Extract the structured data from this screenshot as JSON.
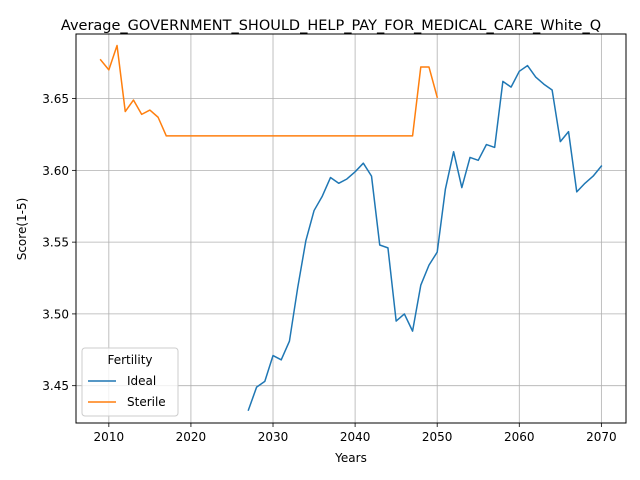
{
  "chart_data": {
    "type": "line",
    "title": "Average_GOVERNMENT_SHOULD_HELP_PAY_FOR_MEDICAL_CARE_White_Q",
    "xlabel": "Years",
    "ylabel": "Score(1-5)",
    "xlim": [
      2006,
      2073
    ],
    "ylim": [
      3.424,
      3.695
    ],
    "xticks": [
      2010,
      2020,
      2030,
      2040,
      2050,
      2060,
      2070
    ],
    "yticks": [
      3.45,
      3.5,
      3.55,
      3.6,
      3.65
    ],
    "ytick_labels": [
      "3.45",
      "3.50",
      "3.55",
      "3.60",
      "3.65"
    ],
    "grid": true,
    "legend": {
      "title": "Fertility",
      "position": "lower-left"
    },
    "series": [
      {
        "name": "Ideal",
        "color": "#1f77b4",
        "points": [
          [
            2027,
            3.433
          ],
          [
            2028,
            3.449
          ],
          [
            2029,
            3.453
          ],
          [
            2030,
            3.471
          ],
          [
            2031,
            3.468
          ],
          [
            2032,
            3.481
          ],
          [
            2033,
            3.518
          ],
          [
            2034,
            3.551
          ],
          [
            2035,
            3.572
          ],
          [
            2036,
            3.582
          ],
          [
            2037,
            3.595
          ],
          [
            2038,
            3.591
          ],
          [
            2039,
            3.594
          ],
          [
            2040,
            3.599
          ],
          [
            2041,
            3.605
          ],
          [
            2042,
            3.596
          ],
          [
            2043,
            3.548
          ],
          [
            2044,
            3.546
          ],
          [
            2045,
            3.495
          ],
          [
            2046,
            3.5
          ],
          [
            2047,
            3.488
          ],
          [
            2048,
            3.52
          ],
          [
            2049,
            3.534
          ],
          [
            2050,
            3.543
          ],
          [
            2051,
            3.587
          ],
          [
            2052,
            3.613
          ],
          [
            2053,
            3.588
          ],
          [
            2054,
            3.609
          ],
          [
            2055,
            3.607
          ],
          [
            2056,
            3.618
          ],
          [
            2057,
            3.616
          ],
          [
            2058,
            3.662
          ],
          [
            2059,
            3.658
          ],
          [
            2060,
            3.669
          ],
          [
            2061,
            3.673
          ],
          [
            2062,
            3.665
          ],
          [
            2063,
            3.66
          ],
          [
            2064,
            3.656
          ],
          [
            2065,
            3.62
          ],
          [
            2066,
            3.627
          ],
          [
            2067,
            3.585
          ],
          [
            2068,
            3.591
          ],
          [
            2069,
            3.596
          ],
          [
            2070,
            3.603
          ]
        ]
      },
      {
        "name": "Sterile",
        "color": "#ff7f0e",
        "points": [
          [
            2009,
            3.677
          ],
          [
            2010,
            3.67
          ],
          [
            2011,
            3.687
          ],
          [
            2012,
            3.641
          ],
          [
            2013,
            3.649
          ],
          [
            2014,
            3.639
          ],
          [
            2015,
            3.642
          ],
          [
            2016,
            3.637
          ],
          [
            2017,
            3.624
          ],
          [
            2018,
            3.624
          ],
          [
            2020,
            3.624
          ],
          [
            2025,
            3.624
          ],
          [
            2030,
            3.624
          ],
          [
            2035,
            3.624
          ],
          [
            2040,
            3.624
          ],
          [
            2045,
            3.624
          ],
          [
            2047,
            3.624
          ],
          [
            2048,
            3.672
          ],
          [
            2049,
            3.672
          ],
          [
            2050,
            3.651
          ]
        ]
      }
    ]
  }
}
